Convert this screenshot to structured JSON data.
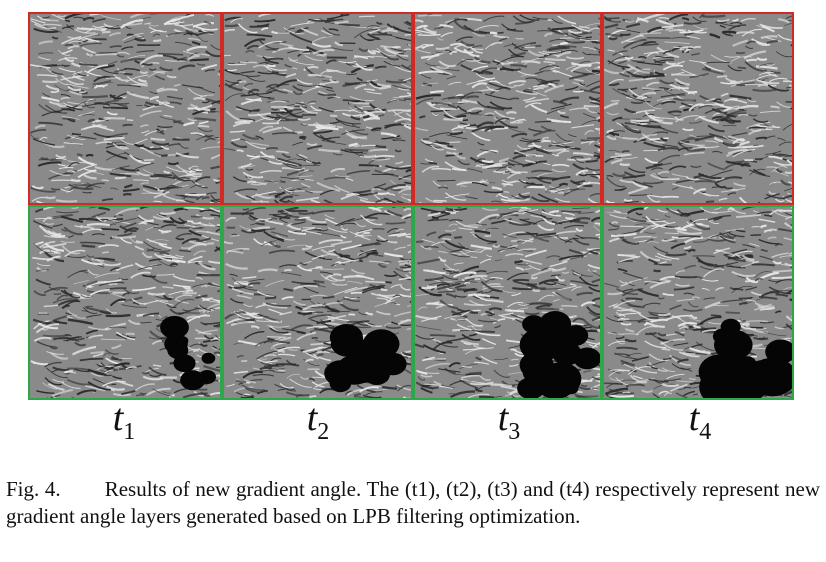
{
  "figure": {
    "panels": {
      "top_row_border_color": "#d22a22",
      "bottom_row_border_color": "#2fa64a",
      "columns": [
        {
          "label_base": "t",
          "label_sub": "1"
        },
        {
          "label_base": "t",
          "label_sub": "2"
        },
        {
          "label_base": "t",
          "label_sub": "3"
        },
        {
          "label_base": "t",
          "label_sub": "4"
        }
      ]
    },
    "caption": {
      "label": "Fig. 4.",
      "text": "Results of new gradient angle. The (t1), (t2), (t3) and (t4) respectively represent new gradient angle layers generated based on LPB filtering optimization."
    }
  }
}
